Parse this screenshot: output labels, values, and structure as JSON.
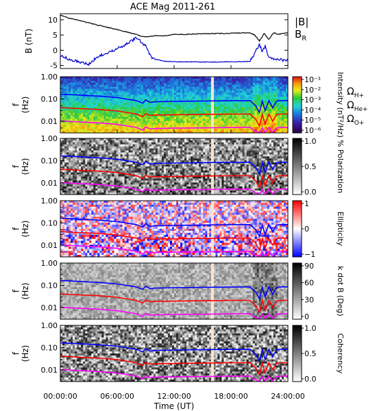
{
  "chart_data": {
    "type": "spectrogram",
    "title": "ACE Mag 2011-261",
    "x_axis": {
      "label": "Time (UT)",
      "range_hours": [
        0,
        24
      ],
      "tick_labels": [
        "00:00:00",
        "06:00:00",
        "12:00:00",
        "18:00:00",
        "24:00:00"
      ]
    },
    "data_gap_hours": [
      15.9,
      16.2
    ],
    "panels": [
      {
        "type": "line",
        "ylabel": "B (nT)",
        "ylim": [
          -6,
          12
        ],
        "yticks": [
          10,
          5,
          0,
          -5
        ],
        "series": [
          {
            "name": "|B|",
            "color": "#000000",
            "x": [
              0,
              1,
              2,
              3,
              4,
              5,
              6,
              7,
              8,
              8.5,
              9,
              10,
              11,
              12,
              13,
              14,
              15,
              16,
              17,
              18,
              19,
              20,
              20.5,
              21,
              21.5,
              22,
              22.5,
              23,
              23.5,
              24
            ],
            "y": [
              11.5,
              10.5,
              9.8,
              9.0,
              8.2,
              7.5,
              6.8,
              6.0,
              5.2,
              4.6,
              4.4,
              4.8,
              4.7,
              5.2,
              5.2,
              5.3,
              5.4,
              5.5,
              5.5,
              5.6,
              5.7,
              5.8,
              5.0,
              3.0,
              5.5,
              3.5,
              5.8,
              5.2,
              5.6,
              5.7
            ]
          },
          {
            "name": "B_R",
            "color": "#0000cc",
            "x": [
              0,
              1,
              2,
              3,
              4,
              5,
              6,
              7,
              8,
              9,
              9.5,
              10,
              11,
              12,
              14,
              16,
              18,
              20,
              20.5,
              21,
              21.3,
              21.6,
              22,
              22.5,
              23,
              23.5,
              24
            ],
            "y": [
              -1.5,
              -3.2,
              -3.8,
              -4.5,
              -2.0,
              -1.0,
              0.5,
              2.0,
              4.0,
              1.5,
              -2.0,
              -3.0,
              -3.6,
              -3.8,
              -3.8,
              -3.9,
              -3.8,
              -3.7,
              -1.0,
              2.0,
              -0.5,
              1.5,
              -2.5,
              -3.0,
              -3.0,
              -3.3,
              -3.2
            ]
          }
        ]
      },
      {
        "type": "heatmap",
        "ylabel": "f (Hz)",
        "yscale": "log",
        "ylim": [
          0.003,
          1.0
        ],
        "ytick_labels": [
          "1.00",
          "0.10",
          "0.01"
        ],
        "colorbar": {
          "label": "Intensity (nT²/Hz)",
          "scale": "log",
          "tick_labels": [
            "10⁻¹",
            "10⁻²",
            "10⁻³",
            "10⁻⁴",
            "10⁻⁵",
            "10⁻⁶"
          ],
          "colormap": "rainbow"
        }
      },
      {
        "type": "heatmap",
        "ylabel": "f (Hz)",
        "yscale": "log",
        "ylim": [
          0.003,
          1.0
        ],
        "ytick_labels": [
          "1.00",
          "0.10",
          "0.01"
        ],
        "colorbar": {
          "label": "% Polarization",
          "range": [
            0,
            1
          ],
          "tick_labels": [
            "1.0",
            "0.5",
            "0.0"
          ],
          "colormap": "gray"
        }
      },
      {
        "type": "heatmap",
        "ylabel": "f (Hz)",
        "yscale": "log",
        "ylim": [
          0.003,
          1.0
        ],
        "ytick_labels": [
          "1.00",
          "0.10",
          "0.01"
        ],
        "colorbar": {
          "label": "Ellipticity",
          "range": [
            -1,
            1
          ],
          "tick_labels": [
            "1",
            "0",
            "−1"
          ],
          "colormap": "blue-white-red"
        }
      },
      {
        "type": "heatmap",
        "ylabel": "f (Hz)",
        "yscale": "log",
        "ylim": [
          0.003,
          1.0
        ],
        "ytick_labels": [
          "1.00",
          "0.10",
          "0.01"
        ],
        "colorbar": {
          "label": "k dot B (Deg)",
          "range": [
            0,
            90
          ],
          "tick_labels": [
            "90",
            "60",
            "30",
            "0"
          ],
          "colormap": "gray"
        }
      },
      {
        "type": "heatmap",
        "ylabel": "f (Hz)",
        "yscale": "log",
        "ylim": [
          0.003,
          1.0
        ],
        "ytick_labels": [
          "1.00",
          "0.10",
          "0.01"
        ],
        "colorbar": {
          "label": "Coherency",
          "range": [
            0,
            1
          ],
          "tick_labels": [
            "1.0",
            "0.5",
            "0.0"
          ],
          "colormap": "gray"
        }
      }
    ],
    "gyrofrequency_lines": [
      {
        "name": "Ω_H+",
        "color": "#0000ff",
        "x": [
          0,
          2,
          4,
          6,
          8,
          8.7,
          9,
          9.5,
          10,
          12,
          14,
          16,
          18,
          20,
          20.6,
          21,
          21.3,
          21.6,
          22,
          22.4,
          22.8,
          23.2,
          24
        ],
        "y": [
          0.165,
          0.15,
          0.135,
          0.115,
          0.085,
          0.065,
          0.09,
          0.07,
          0.075,
          0.078,
          0.08,
          0.082,
          0.083,
          0.085,
          0.05,
          0.025,
          0.08,
          0.03,
          0.085,
          0.04,
          0.08,
          0.085,
          0.085
        ]
      },
      {
        "name": "Ω_He+",
        "color": "#ff0000",
        "x": [
          0,
          2,
          4,
          6,
          8,
          8.7,
          9,
          9.5,
          10,
          12,
          14,
          16,
          18,
          20,
          20.6,
          21,
          21.3,
          21.6,
          22,
          22.4,
          22.8,
          23.2,
          24
        ],
        "y": [
          0.041,
          0.037,
          0.034,
          0.029,
          0.021,
          0.016,
          0.022,
          0.018,
          0.019,
          0.0195,
          0.02,
          0.0205,
          0.021,
          0.021,
          0.0125,
          0.006,
          0.02,
          0.0075,
          0.021,
          0.01,
          0.02,
          0.021,
          0.021
        ]
      },
      {
        "name": "Ω_O+",
        "color": "#ff00ff",
        "x": [
          0,
          2,
          4,
          6,
          8,
          8.7,
          9,
          9.5,
          10,
          12,
          14,
          16,
          18,
          20,
          20.6,
          21,
          21.3,
          21.6,
          22,
          22.4,
          22.8,
          23.2,
          24
        ],
        "y": [
          0.0103,
          0.0093,
          0.0085,
          0.0072,
          0.0053,
          0.004,
          0.0055,
          0.0045,
          0.0047,
          0.0049,
          0.005,
          0.0051,
          0.0052,
          0.0053,
          0.0035,
          0.0031,
          0.005,
          0.0032,
          0.0052,
          0.0032,
          0.005,
          0.0052,
          0.0053
        ]
      }
    ],
    "legend": {
      "panel1": [
        {
          "text": "|B|",
          "color": "#000000"
        },
        {
          "text": "B",
          "sub": "R",
          "color": "#0000cc"
        }
      ],
      "panel2": [
        {
          "text": "Ω",
          "sub": "H+",
          "color": "#0000ff"
        },
        {
          "text": "Ω",
          "sub": "He+",
          "color": "#ff0000"
        },
        {
          "text": "Ω",
          "sub": "O+",
          "color": "#ff00ff"
        }
      ]
    }
  }
}
